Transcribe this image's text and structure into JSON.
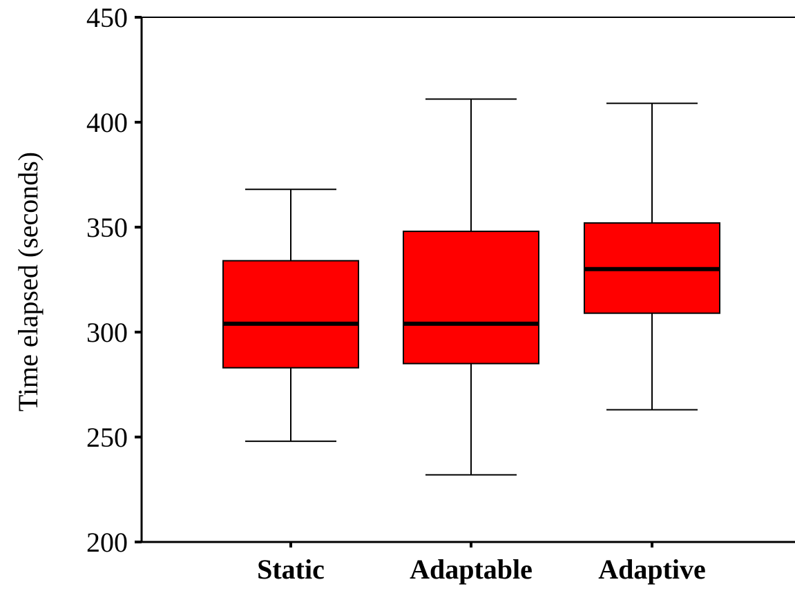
{
  "chart_data": {
    "type": "box",
    "title": "",
    "xlabel": "",
    "ylabel": "Time elapsed (seconds)",
    "ylim": [
      200,
      450
    ],
    "yticks": [
      200,
      250,
      300,
      350,
      400,
      450
    ],
    "grid": false,
    "legend": "none",
    "categories": [
      "Static",
      "Adaptable",
      "Adaptive"
    ],
    "box_color": "#ff0000",
    "line_color": "#000000",
    "boxes": [
      {
        "category": "Static",
        "whisker_low": 248,
        "q1": 283,
        "median": 304,
        "q3": 334,
        "whisker_high": 368
      },
      {
        "category": "Adaptable",
        "whisker_low": 232,
        "q1": 285,
        "median": 304,
        "q3": 348,
        "whisker_high": 411
      },
      {
        "category": "Adaptive",
        "whisker_low": 263,
        "q1": 309,
        "median": 330,
        "q3": 352,
        "whisker_high": 409
      }
    ]
  }
}
